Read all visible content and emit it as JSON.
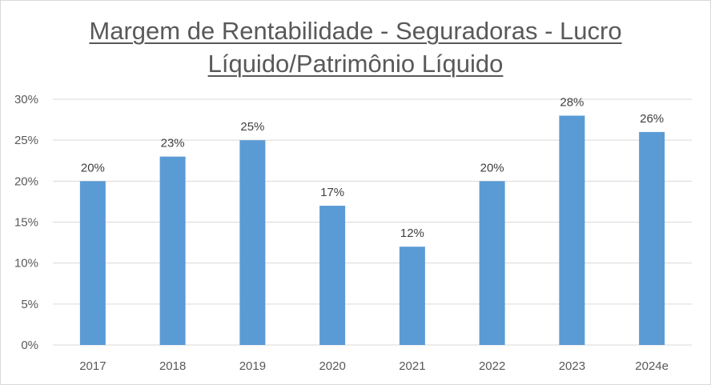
{
  "chart_data": {
    "type": "bar",
    "title_line1": "Margem de Rentabilidade - Seguradoras - Lucro",
    "title_line2": "Líquido/Patrimônio Líquido",
    "categories": [
      "2017",
      "2018",
      "2019",
      "2020",
      "2021",
      "2022",
      "2023",
      "2024e"
    ],
    "values": [
      20,
      23,
      25,
      17,
      12,
      20,
      28,
      26
    ],
    "data_labels": [
      "20%",
      "23%",
      "25%",
      "17%",
      "12%",
      "20%",
      "28%",
      "26%"
    ],
    "yticks": [
      "0%",
      "5%",
      "10%",
      "15%",
      "20%",
      "25%",
      "30%"
    ],
    "ytick_values": [
      0,
      5,
      10,
      15,
      20,
      25,
      30
    ],
    "ylim": [
      0,
      30
    ],
    "grid": true,
    "legend": "none",
    "bar_color": "#5b9bd5",
    "gridline_color": "#d9d9d9"
  }
}
